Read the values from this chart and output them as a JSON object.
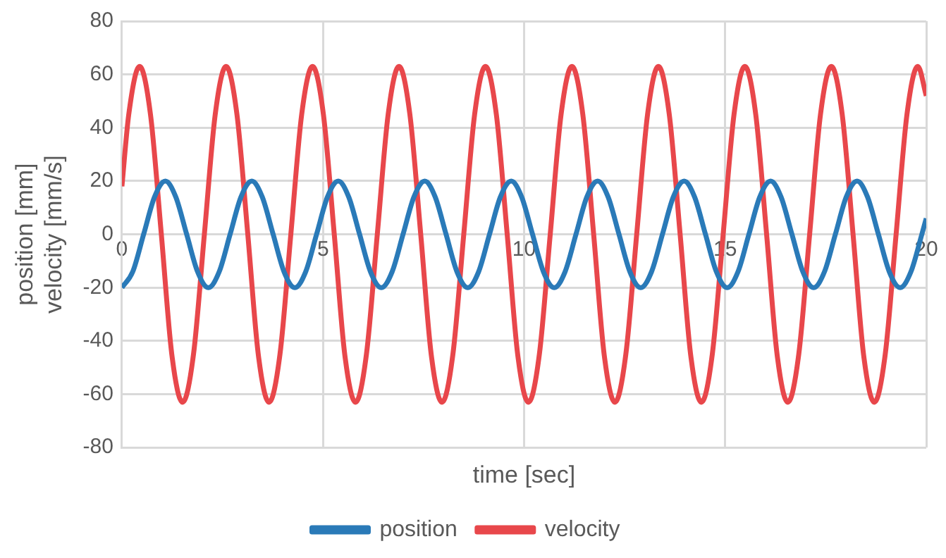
{
  "chart_data": {
    "type": "line",
    "xlabel": "time [sec]",
    "ylabel": "position [mm]\nvelocity [mm/s]",
    "xlim": [
      0,
      20
    ],
    "xticks": [
      0,
      5,
      10,
      15,
      20
    ],
    "ylim": [
      -80,
      80
    ],
    "yticks": [
      -80,
      -60,
      -40,
      -20,
      0,
      20,
      40,
      60,
      80
    ],
    "grid": true,
    "legend": "bottom",
    "marker": "none",
    "line_style": "solid",
    "series": [
      {
        "name": "position",
        "color": "#2a7ab8",
        "x": [
          0,
          0.27,
          0.54,
          0.81,
          1.08,
          1.34,
          1.61,
          1.88,
          2.15,
          2.42,
          2.69,
          2.96,
          3.23,
          3.49,
          3.76,
          4.03,
          4.3,
          4.57,
          4.84,
          5.11,
          5.38,
          5.64,
          5.91,
          6.18,
          6.45,
          6.72,
          6.99,
          7.26,
          7.53,
          7.79,
          8.06,
          8.33,
          8.6,
          8.87,
          9.14,
          9.41,
          9.68,
          9.94,
          10.21,
          10.48,
          10.75,
          11.02,
          11.29,
          11.56,
          11.83,
          12.09,
          12.36,
          12.63,
          12.9,
          13.17,
          13.44,
          13.71,
          13.98,
          14.24,
          14.51,
          14.78,
          15.05,
          15.32,
          15.59,
          15.86,
          16.13,
          16.39,
          16.66,
          16.93,
          17.2,
          17.47,
          17.74,
          18.01,
          18.28,
          18.54,
          18.81,
          19.08,
          19.35,
          19.62,
          19.89,
          20
        ],
        "values": [
          -20,
          -14,
          0,
          14,
          20,
          14,
          0,
          -14,
          -20,
          -14,
          0,
          14,
          20,
          14,
          0,
          -14,
          -20,
          -14,
          0,
          14,
          20,
          14,
          0,
          -14,
          -20,
          -14,
          0,
          14,
          20,
          14,
          0,
          -14,
          -20,
          -14,
          0,
          14,
          20,
          14,
          0,
          -14,
          -20,
          -14,
          0,
          14,
          20,
          14,
          0,
          -14,
          -20,
          -14,
          0,
          14,
          20,
          14,
          0,
          -14,
          -20,
          -14,
          0,
          14,
          20,
          14,
          0,
          -14,
          -20,
          -14,
          0,
          14,
          20,
          14,
          0,
          -14,
          -20,
          -14,
          0,
          6
        ]
      },
      {
        "name": "velocity",
        "color": "#e8474b",
        "x": [
          0,
          0.17,
          0.44,
          0.71,
          0.98,
          1.24,
          1.51,
          1.78,
          2.05,
          2.32,
          2.59,
          2.86,
          3.13,
          3.39,
          3.66,
          3.93,
          4.2,
          4.47,
          4.74,
          5.01,
          5.28,
          5.54,
          5.81,
          6.08,
          6.35,
          6.62,
          6.89,
          7.16,
          7.43,
          7.69,
          7.96,
          8.23,
          8.5,
          8.77,
          9.04,
          9.31,
          9.58,
          9.84,
          10.11,
          10.38,
          10.65,
          10.92,
          11.19,
          11.46,
          11.73,
          11.99,
          12.26,
          12.53,
          12.8,
          13.07,
          13.34,
          13.61,
          13.88,
          14.14,
          14.41,
          14.68,
          14.95,
          15.22,
          15.49,
          15.76,
          16.03,
          16.29,
          16.56,
          16.83,
          17.1,
          17.37,
          17.64,
          17.91,
          18.18,
          18.44,
          18.71,
          18.98,
          19.25,
          19.52,
          19.79,
          20
        ],
        "values": [
          18,
          45,
          63,
          45,
          0,
          -45,
          -63,
          -45,
          0,
          45,
          63,
          45,
          0,
          -45,
          -63,
          -45,
          0,
          45,
          63,
          45,
          0,
          -45,
          -63,
          -45,
          0,
          45,
          63,
          45,
          0,
          -45,
          -63,
          -45,
          0,
          45,
          63,
          45,
          0,
          -45,
          -63,
          -45,
          0,
          45,
          63,
          45,
          0,
          -45,
          -63,
          -45,
          0,
          45,
          63,
          45,
          0,
          -45,
          -63,
          -45,
          0,
          45,
          63,
          45,
          0,
          -45,
          -63,
          -45,
          0,
          45,
          63,
          45,
          0,
          -45,
          -63,
          -45,
          0,
          45,
          63,
          52
        ]
      }
    ]
  }
}
